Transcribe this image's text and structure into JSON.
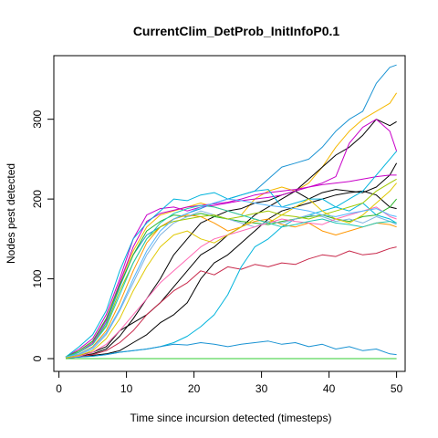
{
  "chart_data": {
    "type": "line",
    "title": "CurrentClim_DetProb_InitInfoP0.1",
    "xlabel": "Time since incursion detected (timesteps)",
    "ylabel": "Nodes pest detected",
    "xlim": [
      1,
      50
    ],
    "ylim": [
      0,
      370
    ],
    "xticks": [
      "0",
      "10",
      "20",
      "30",
      "40",
      "50"
    ],
    "yticks": [
      "0",
      "100",
      "200",
      "300"
    ],
    "grid": false,
    "legend": "none",
    "series": [
      {
        "color": "#1a93d3",
        "x": [
          1,
          3,
          5,
          7,
          9,
          11,
          13,
          15,
          17,
          19,
          21,
          23,
          25,
          27,
          29,
          31,
          33,
          35,
          37,
          39,
          41,
          43,
          45,
          47,
          49,
          50
        ],
        "y": [
          2,
          8,
          18,
          45,
          90,
          130,
          155,
          165,
          175,
          182,
          188,
          195,
          200,
          205,
          210,
          225,
          240,
          245,
          250,
          265,
          285,
          300,
          310,
          345,
          365,
          368
        ]
      },
      {
        "color": "#f5b800",
        "x": [
          1,
          3,
          5,
          7,
          9,
          11,
          13,
          15,
          17,
          19,
          21,
          23,
          25,
          27,
          29,
          31,
          33,
          35,
          37,
          39,
          41,
          43,
          45,
          47,
          49,
          50
        ],
        "y": [
          2,
          10,
          22,
          50,
          95,
          135,
          165,
          180,
          185,
          190,
          195,
          190,
          185,
          180,
          200,
          210,
          215,
          210,
          220,
          240,
          265,
          285,
          300,
          310,
          320,
          333
        ]
      },
      {
        "color": "#000000",
        "x": [
          1,
          3,
          5,
          7,
          9,
          11,
          13,
          15,
          17,
          19,
          21,
          23,
          25,
          27,
          29,
          31,
          33,
          35,
          37,
          39,
          41,
          43,
          45,
          47,
          49,
          50
        ],
        "y": [
          2,
          4,
          8,
          15,
          35,
          45,
          55,
          70,
          90,
          110,
          130,
          140,
          155,
          165,
          180,
          190,
          200,
          210,
          225,
          240,
          255,
          265,
          280,
          300,
          292,
          297
        ]
      },
      {
        "color": "#000000",
        "x": [
          1,
          3,
          5,
          7,
          9,
          11,
          13,
          15,
          17,
          19,
          21,
          23,
          25,
          27,
          29,
          31,
          33,
          35,
          37,
          39,
          41,
          43,
          45,
          47,
          49,
          50
        ],
        "y": [
          1,
          3,
          6,
          12,
          28,
          50,
          75,
          100,
          130,
          150,
          170,
          178,
          185,
          188,
          195,
          198,
          205,
          210,
          200,
          208,
          212,
          210,
          208,
          215,
          230,
          245
        ]
      },
      {
        "color": "#000000",
        "x": [
          1,
          3,
          5,
          7,
          9,
          11,
          13,
          15,
          17,
          19,
          21,
          23,
          25,
          27,
          29,
          31,
          33,
          35,
          37,
          39,
          41,
          43,
          45,
          47,
          49,
          50
        ],
        "y": [
          1,
          2,
          4,
          6,
          10,
          20,
          30,
          45,
          55,
          70,
          100,
          120,
          130,
          145,
          160,
          175,
          185,
          190,
          195,
          200,
          205,
          208,
          210,
          205,
          190,
          188
        ]
      },
      {
        "color": "#c800c8",
        "x": [
          1,
          3,
          5,
          7,
          9,
          11,
          13,
          15,
          17,
          19,
          21,
          23,
          25,
          27,
          29,
          31,
          33,
          35,
          37,
          39,
          41,
          43,
          45,
          47,
          49,
          50
        ],
        "y": [
          2,
          12,
          25,
          55,
          100,
          150,
          180,
          188,
          190,
          185,
          190,
          192,
          195,
          198,
          200,
          202,
          205,
          210,
          215,
          220,
          228,
          270,
          290,
          300,
          285,
          260
        ]
      },
      {
        "color": "#c800c8",
        "x": [
          1,
          3,
          5,
          7,
          9,
          11,
          13,
          15,
          17,
          19,
          21,
          23,
          25,
          27,
          29,
          31,
          33,
          35,
          37,
          39,
          41,
          43,
          45,
          47,
          49,
          50
        ],
        "y": [
          2,
          8,
          20,
          48,
          95,
          140,
          172,
          182,
          186,
          190,
          192,
          194,
          196,
          200,
          205,
          208,
          210,
          212,
          215,
          218,
          220,
          222,
          225,
          228,
          230,
          230
        ]
      },
      {
        "color": "#c8284a",
        "x": [
          1,
          3,
          5,
          7,
          9,
          11,
          13,
          15,
          17,
          19,
          21,
          23,
          25,
          27,
          29,
          31,
          33,
          35,
          37,
          39,
          41,
          43,
          45,
          47,
          49,
          50
        ],
        "y": [
          1,
          2,
          5,
          10,
          20,
          35,
          55,
          70,
          85,
          95,
          110,
          105,
          115,
          112,
          118,
          115,
          120,
          118,
          125,
          130,
          128,
          135,
          130,
          132,
          138,
          140
        ]
      },
      {
        "color": "#00b4dc",
        "x": [
          1,
          3,
          5,
          7,
          9,
          11,
          13,
          15,
          17,
          19,
          21,
          23,
          25,
          27,
          29,
          31,
          33,
          35,
          37,
          39,
          41,
          43,
          45,
          47,
          49,
          50
        ],
        "y": [
          1,
          2,
          3,
          5,
          8,
          10,
          12,
          15,
          20,
          28,
          40,
          55,
          80,
          115,
          140,
          150,
          165,
          175,
          180,
          185,
          190,
          200,
          210,
          230,
          250,
          260
        ]
      },
      {
        "color": "#00b4dc",
        "x": [
          1,
          3,
          5,
          7,
          9,
          11,
          13,
          15,
          17,
          19,
          21,
          23,
          25,
          27,
          29,
          31,
          33,
          35,
          37,
          39,
          41,
          43,
          45,
          47,
          49,
          50
        ],
        "y": [
          2,
          15,
          30,
          60,
          110,
          150,
          170,
          185,
          200,
          198,
          205,
          208,
          200,
          205,
          210,
          212,
          190,
          195,
          200,
          200,
          190,
          185,
          195,
          180,
          175,
          170
        ]
      },
      {
        "color": "#1a93d3",
        "x": [
          1,
          3,
          5,
          7,
          9,
          11,
          13,
          15,
          17,
          19,
          21,
          23,
          25,
          27,
          29,
          31,
          33,
          35,
          37,
          39,
          41,
          43,
          45,
          47,
          49,
          50
        ],
        "y": [
          1,
          2,
          3,
          5,
          8,
          10,
          12,
          15,
          18,
          17,
          20,
          18,
          15,
          18,
          20,
          22,
          18,
          20,
          15,
          18,
          12,
          15,
          10,
          12,
          6,
          5
        ]
      },
      {
        "color": "#28b428",
        "x": [
          1,
          3,
          5,
          7,
          9,
          11,
          13,
          15,
          17,
          19,
          21,
          23,
          25,
          27,
          29,
          31,
          33,
          35,
          37,
          39,
          41,
          43,
          45,
          47,
          49,
          50
        ],
        "y": [
          2,
          10,
          22,
          50,
          92,
          130,
          160,
          172,
          180,
          178,
          182,
          178,
          175,
          172,
          170,
          168,
          172,
          175,
          178,
          180,
          175,
          172,
          178,
          180,
          190,
          200
        ]
      },
      {
        "color": "#ff9600",
        "x": [
          1,
          3,
          5,
          7,
          9,
          11,
          13,
          15,
          17,
          19,
          21,
          23,
          25,
          27,
          29,
          31,
          33,
          35,
          37,
          39,
          41,
          43,
          45,
          47,
          49,
          50
        ],
        "y": [
          2,
          6,
          15,
          35,
          70,
          110,
          145,
          165,
          175,
          180,
          178,
          170,
          160,
          165,
          172,
          175,
          168,
          165,
          170,
          160,
          155,
          160,
          165,
          170,
          168,
          165
        ]
      },
      {
        "color": "#7fb3e0",
        "x": [
          1,
          3,
          5,
          7,
          9,
          11,
          13,
          15,
          17,
          19,
          21,
          23,
          25,
          27,
          29,
          31,
          33,
          35,
          37,
          39,
          41,
          43,
          45,
          47,
          49,
          50
        ],
        "y": [
          2,
          5,
          12,
          30,
          60,
          95,
          130,
          155,
          170,
          178,
          185,
          180,
          175,
          170,
          165,
          172,
          170,
          175,
          180,
          178,
          172,
          175,
          170,
          178,
          172,
          168
        ]
      },
      {
        "color": "#ff69b4",
        "x": [
          1,
          3,
          5,
          7,
          9,
          11,
          13,
          15,
          17,
          19,
          21,
          23,
          25,
          27,
          29,
          31,
          33,
          35,
          37,
          39,
          41,
          43,
          45,
          47,
          49,
          50
        ],
        "y": [
          1,
          3,
          8,
          18,
          35,
          55,
          75,
          95,
          110,
          125,
          140,
          150,
          155,
          160,
          165,
          170,
          175,
          172,
          170,
          168,
          175,
          180,
          185,
          190,
          178,
          175
        ]
      },
      {
        "color": "#a0c800",
        "x": [
          1,
          3,
          5,
          7,
          9,
          11,
          13,
          15,
          17,
          19,
          21,
          23,
          25,
          27,
          29,
          31,
          33,
          35,
          37,
          39,
          41,
          43,
          45,
          47,
          49,
          50
        ],
        "y": [
          2,
          8,
          18,
          42,
          85,
          120,
          150,
          165,
          172,
          175,
          178,
          180,
          175,
          178,
          182,
          185,
          180,
          178,
          175,
          180,
          185,
          190,
          195,
          210,
          220,
          225
        ]
      },
      {
        "color": "#e0c800",
        "x": [
          1,
          3,
          5,
          7,
          9,
          11,
          13,
          15,
          17,
          19,
          21,
          23,
          25,
          27,
          29,
          31,
          33,
          35,
          37,
          39,
          41,
          43,
          45,
          47,
          49,
          50
        ],
        "y": [
          1,
          4,
          10,
          25,
          50,
          85,
          115,
          140,
          155,
          160,
          150,
          145,
          155,
          165,
          175,
          170,
          180,
          190,
          200,
          185,
          175,
          170,
          180,
          195,
          210,
          220
        ]
      },
      {
        "color": "#20c8b4",
        "x": [
          1,
          3,
          5,
          7,
          9,
          11,
          13,
          15,
          17,
          19,
          21,
          23,
          25,
          27,
          29,
          31,
          33,
          35,
          37,
          39,
          41,
          43,
          45,
          47,
          49,
          50
        ],
        "y": [
          2,
          8,
          18,
          40,
          80,
          120,
          150,
          170,
          182,
          188,
          192,
          190,
          185,
          180,
          175,
          170,
          165,
          168,
          172,
          175,
          170,
          168,
          165,
          170,
          172,
          170
        ]
      },
      {
        "color": "#50b4ff",
        "x": [
          1,
          3,
          5,
          7,
          9,
          11,
          13,
          15,
          17,
          19,
          21,
          23,
          25,
          27,
          29,
          31,
          33,
          35,
          37,
          39,
          41,
          43,
          45,
          47,
          49,
          50
        ],
        "y": [
          2,
          6,
          14,
          32,
          62,
          100,
          135,
          160,
          175,
          182,
          190,
          195,
          200,
          198,
          195,
          192,
          190,
          188,
          185,
          180,
          178,
          182,
          185,
          188,
          180,
          178
        ]
      },
      {
        "color": "#32cd32",
        "x": [
          1,
          50
        ],
        "y": [
          0,
          0
        ]
      }
    ]
  }
}
